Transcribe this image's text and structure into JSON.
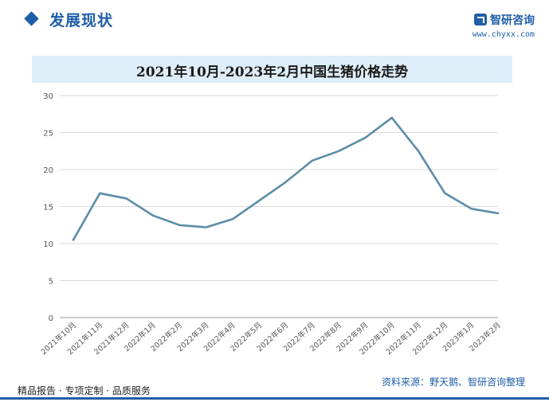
{
  "header": {
    "section_title": "发展现状",
    "logo_name": "智研咨询",
    "logo_url": "www.chyxx.com"
  },
  "chart_data": {
    "type": "line",
    "title": "2021年10月-2023年2月中国生猪价格走势",
    "xlabel": "",
    "ylabel": "",
    "categories": [
      "2021年10月",
      "2021年11月",
      "2021年12月",
      "2022年1月",
      "2022年2月",
      "2022年3月",
      "2022年4月",
      "2022年5月",
      "2022年6月",
      "2022年7月",
      "2022年8月",
      "2022年9月",
      "2022年10月",
      "2022年11月",
      "2022年12月",
      "2023年1月",
      "2023年2月"
    ],
    "series": [
      {
        "name": "",
        "values": [
          10.5,
          16.8,
          16.1,
          13.8,
          12.5,
          12.2,
          13.3,
          15.8,
          18.3,
          21.2,
          22.5,
          24.3,
          27.0,
          22.5,
          16.8,
          14.7,
          14.1
        ]
      }
    ],
    "ylim": [
      0,
      30
    ],
    "yticks": [
      0,
      5,
      10,
      15,
      20,
      25,
      30
    ],
    "grid": "horizontal",
    "line_color": "#5b8da7"
  },
  "footer": {
    "slogan": "精品报告 · 专项定制 · 品质服务",
    "source": "资料来源：野天鹅、智研咨询整理"
  }
}
